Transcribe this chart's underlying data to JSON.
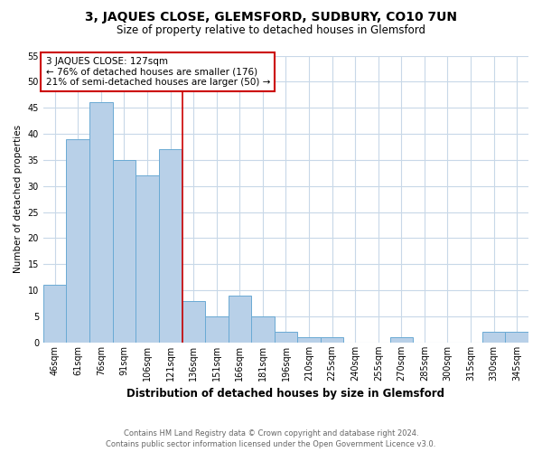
{
  "title": "3, JAQUES CLOSE, GLEMSFORD, SUDBURY, CO10 7UN",
  "subtitle": "Size of property relative to detached houses in Glemsford",
  "xlabel": "Distribution of detached houses by size in Glemsford",
  "ylabel": "Number of detached properties",
  "footer_line1": "Contains HM Land Registry data © Crown copyright and database right 2024.",
  "footer_line2": "Contains public sector information licensed under the Open Government Licence v3.0.",
  "annotation_line1": "3 JAQUES CLOSE: 127sqm",
  "annotation_line2": "← 76% of detached houses are smaller (176)",
  "annotation_line3": "21% of semi-detached houses are larger (50) →",
  "categories": [
    "46sqm",
    "61sqm",
    "76sqm",
    "91sqm",
    "106sqm",
    "121sqm",
    "136sqm",
    "151sqm",
    "166sqm",
    "181sqm",
    "196sqm",
    "210sqm",
    "225sqm",
    "240sqm",
    "255sqm",
    "270sqm",
    "285sqm",
    "300sqm",
    "315sqm",
    "330sqm",
    "345sqm"
  ],
  "values": [
    11,
    39,
    46,
    35,
    32,
    37,
    8,
    5,
    9,
    5,
    2,
    1,
    1,
    0,
    0,
    1,
    0,
    0,
    0,
    2,
    2
  ],
  "bar_color": "#b8d0e8",
  "bar_edge_color": "#6aaad4",
  "red_line_index": 5.53,
  "red_line_color": "#cc0000",
  "background_color": "#ffffff",
  "grid_color": "#c8d8e8",
  "ylim": [
    0,
    55
  ],
  "yticks": [
    0,
    5,
    10,
    15,
    20,
    25,
    30,
    35,
    40,
    45,
    50,
    55
  ],
  "title_fontsize": 10,
  "subtitle_fontsize": 8.5,
  "xlabel_fontsize": 8.5,
  "ylabel_fontsize": 7.5,
  "tick_fontsize": 7,
  "annotation_fontsize": 7.5,
  "footer_fontsize": 6.0
}
